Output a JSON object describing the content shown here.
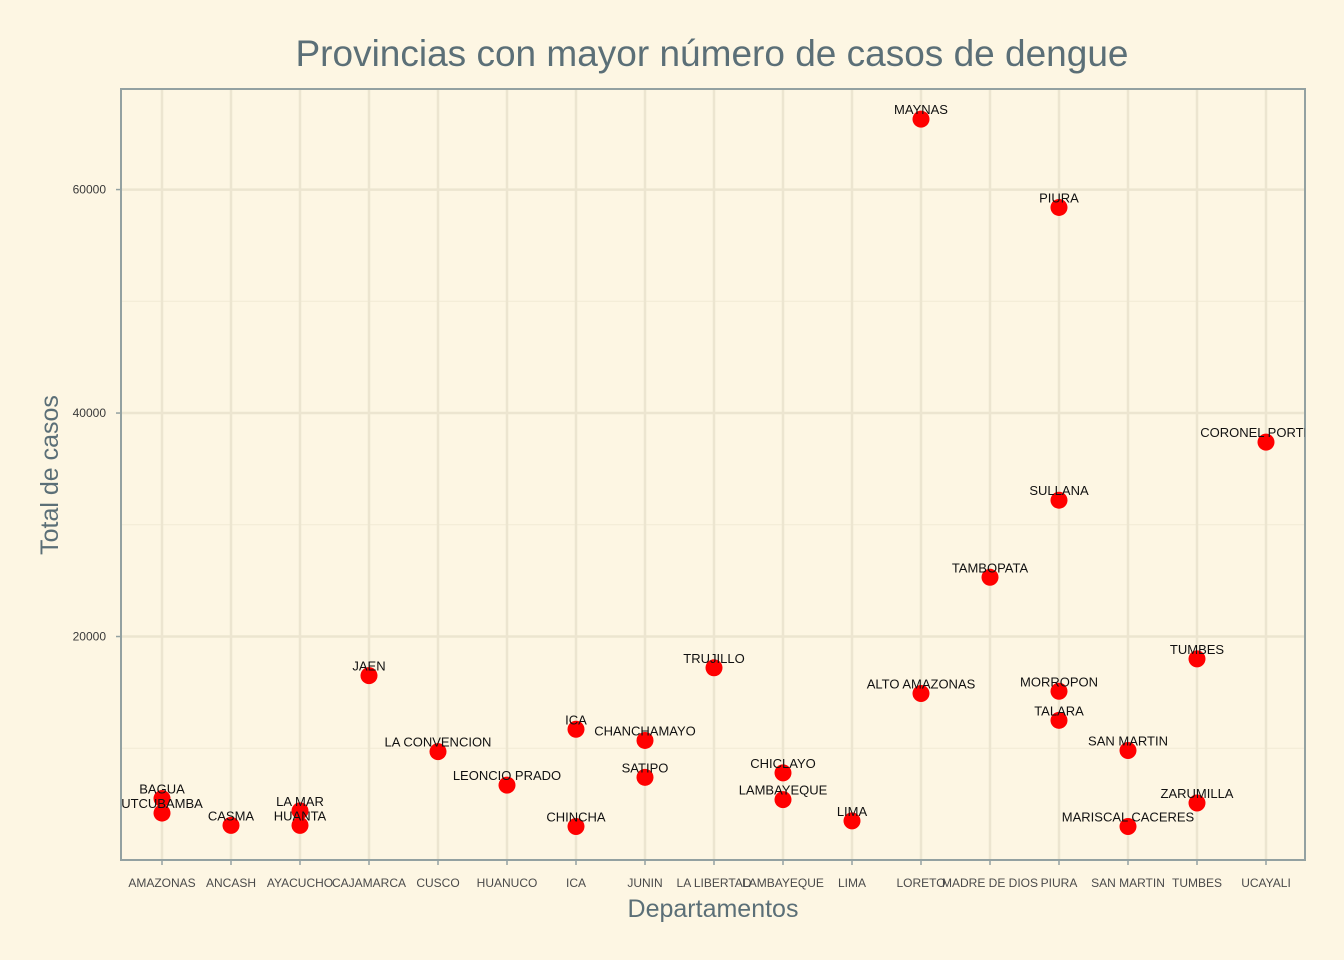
{
  "chart_data": {
    "type": "scatter",
    "title": "Provincias con mayor número de casos de dengue",
    "xlabel": "Departamentos",
    "ylabel": "Total de casos",
    "categories": [
      "AMAZONAS",
      "ANCASH",
      "AYACUCHO",
      "CAJAMARCA",
      "CUSCO",
      "HUANUCO",
      "ICA",
      "JUNIN",
      "LA LIBERTAD",
      "LAMBAYEQUE",
      "LIMA",
      "LORETO",
      "MADRE DE DIOS",
      "PIURA",
      "SAN MARTIN",
      "TUMBES",
      "UCAYALI"
    ],
    "ylim": [
      0,
      69000
    ],
    "yticks": [
      20000,
      40000,
      60000
    ],
    "ytick_labels": [
      "20000",
      "40000",
      "60000"
    ],
    "grid": true,
    "point_color": "#ff0000",
    "points": [
      {
        "x": "AMAZONAS",
        "y": 5500,
        "label": "BAGUA"
      },
      {
        "x": "AMAZONAS",
        "y": 4200,
        "label": "UTCUBAMBA"
      },
      {
        "x": "ANCASH",
        "y": 3100,
        "label": "CASMA"
      },
      {
        "x": "AYACUCHO",
        "y": 4400,
        "label": "LA MAR"
      },
      {
        "x": "AYACUCHO",
        "y": 3100,
        "label": "HUANTA"
      },
      {
        "x": "CAJAMARCA",
        "y": 16500,
        "label": "JAEN"
      },
      {
        "x": "CUSCO",
        "y": 9700,
        "label": "LA CONVENCION"
      },
      {
        "x": "HUANUCO",
        "y": 6700,
        "label": "LEONCIO PRADO"
      },
      {
        "x": "ICA",
        "y": 11700,
        "label": "ICA"
      },
      {
        "x": "ICA",
        "y": 3000,
        "label": "CHINCHA"
      },
      {
        "x": "JUNIN",
        "y": 10700,
        "label": "CHANCHAMAYO"
      },
      {
        "x": "JUNIN",
        "y": 7400,
        "label": "SATIPO"
      },
      {
        "x": "LA LIBERTAD",
        "y": 17200,
        "label": "TRUJILLO"
      },
      {
        "x": "LAMBAYEQUE",
        "y": 7800,
        "label": "CHICLAYO"
      },
      {
        "x": "LAMBAYEQUE",
        "y": 5400,
        "label": "LAMBAYEQUE"
      },
      {
        "x": "LIMA",
        "y": 3500,
        "label": "LIMA"
      },
      {
        "x": "LORETO",
        "y": 66300,
        "label": "MAYNAS"
      },
      {
        "x": "LORETO",
        "y": 14900,
        "label": "ALTO AMAZONAS"
      },
      {
        "x": "MADRE DE DIOS",
        "y": 25300,
        "label": "TAMBOPATA"
      },
      {
        "x": "PIURA",
        "y": 58400,
        "label": "PIURA"
      },
      {
        "x": "PIURA",
        "y": 32200,
        "label": "SULLANA"
      },
      {
        "x": "PIURA",
        "y": 15100,
        "label": "MORROPON"
      },
      {
        "x": "PIURA",
        "y": 12500,
        "label": "TALARA"
      },
      {
        "x": "SAN MARTIN",
        "y": 9800,
        "label": "SAN MARTIN"
      },
      {
        "x": "SAN MARTIN",
        "y": 3000,
        "label": "MARISCAL CACERES"
      },
      {
        "x": "TUMBES",
        "y": 18000,
        "label": "TUMBES"
      },
      {
        "x": "TUMBES",
        "y": 5100,
        "label": "ZARUMILLA"
      },
      {
        "x": "UCAYALI",
        "y": 37400,
        "label": "CORONEL PORTILLO"
      }
    ]
  }
}
